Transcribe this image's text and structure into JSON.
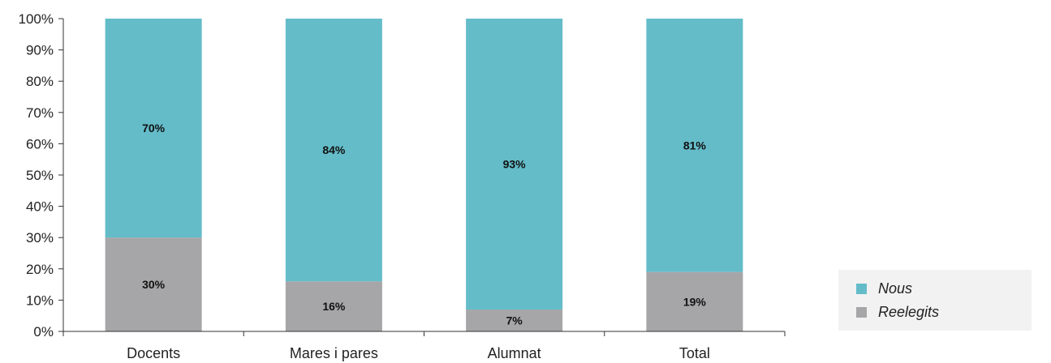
{
  "chart_data": {
    "type": "bar",
    "stacked": true,
    "categories": [
      "Docents",
      "Mares i pares",
      "Alumnat",
      "Total"
    ],
    "series": [
      {
        "name": "Reelegits",
        "values": [
          30,
          16,
          7,
          19
        ],
        "labels": [
          "30%",
          "16%",
          "7%",
          "19%"
        ],
        "color": "#a6a6a8"
      },
      {
        "name": "Nous",
        "values": [
          70,
          84,
          93,
          81
        ],
        "labels": [
          "70%",
          "84%",
          "93%",
          "81%"
        ],
        "color": "#64bcc9"
      }
    ],
    "y_ticks": [
      "0%",
      "10%",
      "20%",
      "30%",
      "40%",
      "50%",
      "60%",
      "70%",
      "80%",
      "90%",
      "100%"
    ],
    "ylim": [
      0,
      100
    ],
    "grid": false,
    "legend": {
      "placement": "bottom-right",
      "items": [
        {
          "name": "Nous",
          "color": "#64bcc9"
        },
        {
          "name": "Reelegits",
          "color": "#a6a6a8"
        }
      ]
    },
    "axis_color": "#333333"
  }
}
